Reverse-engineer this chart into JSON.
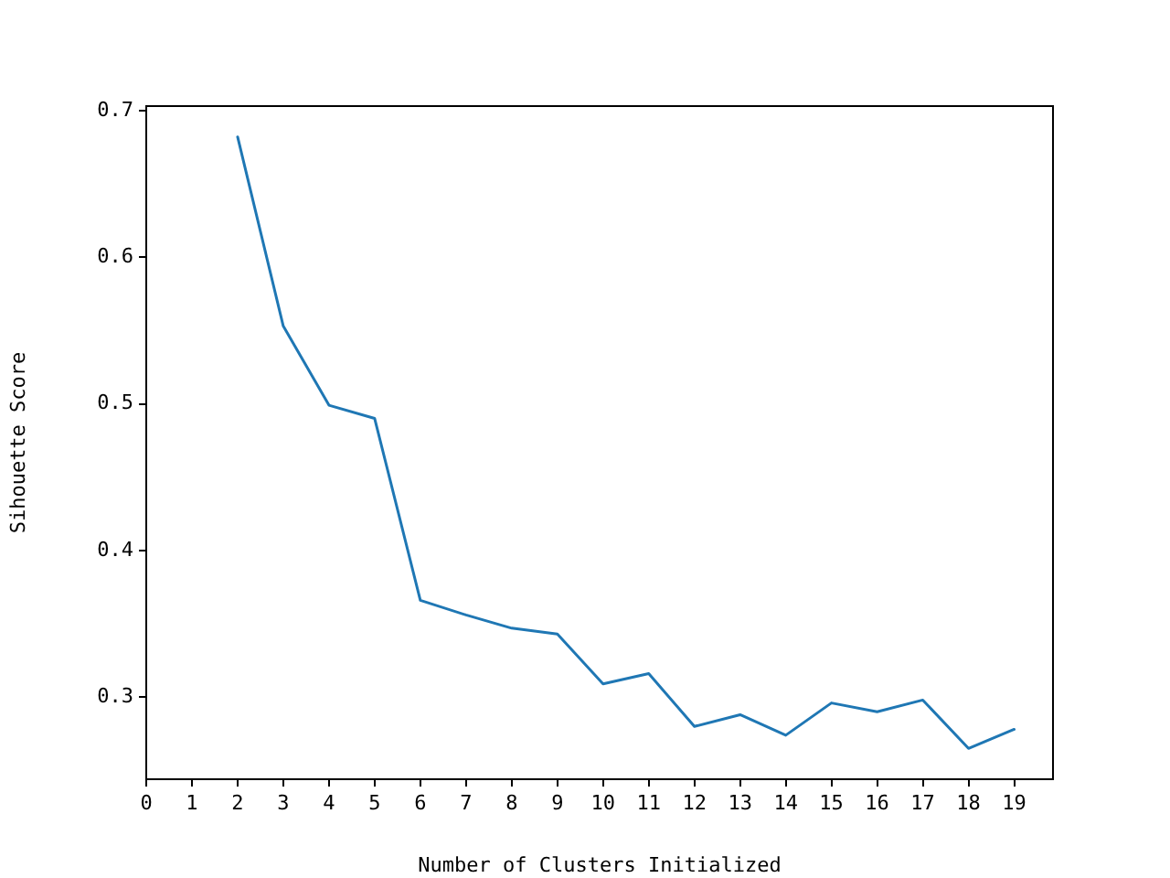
{
  "chart_data": {
    "type": "line",
    "xlabel": "Number of Clusters Initialized",
    "ylabel": "Sihouette Score",
    "x": [
      2,
      3,
      4,
      5,
      6,
      7,
      8,
      9,
      10,
      11,
      12,
      13,
      14,
      15,
      16,
      17,
      18,
      19
    ],
    "series": [
      {
        "color": "#1f77b4",
        "values": [
          0.682,
          0.553,
          0.499,
          0.49,
          0.366,
          0.356,
          0.347,
          0.343,
          0.309,
          0.316,
          0.28,
          0.288,
          0.274,
          0.296,
          0.29,
          0.298,
          0.265,
          0.278
        ]
      }
    ],
    "xlim": [
      0,
      19.85
    ],
    "ylim": [
      0.244,
      0.703
    ],
    "xticks": [
      0,
      1,
      2,
      3,
      4,
      5,
      6,
      7,
      8,
      9,
      10,
      11,
      12,
      13,
      14,
      15,
      16,
      17,
      18,
      19
    ],
    "yticks": [
      0.3,
      0.4,
      0.5,
      0.6,
      0.7
    ]
  }
}
